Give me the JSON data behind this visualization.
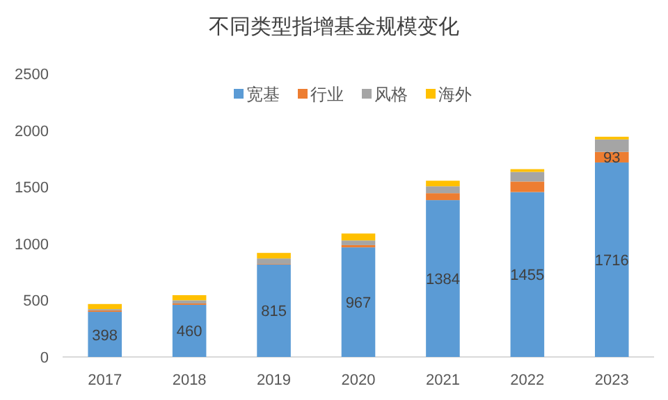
{
  "chart_data": {
    "type": "bar",
    "title": "不同类型指增基金规模变化",
    "categories": [
      "2017",
      "2018",
      "2019",
      "2020",
      "2021",
      "2022",
      "2023"
    ],
    "stacked": true,
    "series": [
      {
        "name": "宽基",
        "color": "#5b9bd5",
        "values": [
          398,
          460,
          815,
          967,
          1384,
          1455,
          1716
        ],
        "value_labels": [
          "398",
          "460",
          "815",
          "967",
          "1384",
          "1455",
          "1716"
        ]
      },
      {
        "name": "行业",
        "color": "#ed7d31",
        "values": [
          12,
          12,
          5,
          20,
          61,
          93,
          93
        ],
        "value_labels": [
          null,
          null,
          null,
          null,
          null,
          null,
          "93"
        ]
      },
      {
        "name": "风格",
        "color": "#a5a5a5",
        "values": [
          12,
          28,
          49,
          41,
          61,
          85,
          110
        ]
      },
      {
        "name": "海外",
        "color": "#ffc000",
        "values": [
          45,
          45,
          49,
          61,
          49,
          24,
          24
        ]
      }
    ],
    "ylim": [
      0,
      2500
    ],
    "yticks": [
      0,
      500,
      1000,
      1500,
      2000,
      2500
    ],
    "grid": false,
    "legend": "top"
  }
}
